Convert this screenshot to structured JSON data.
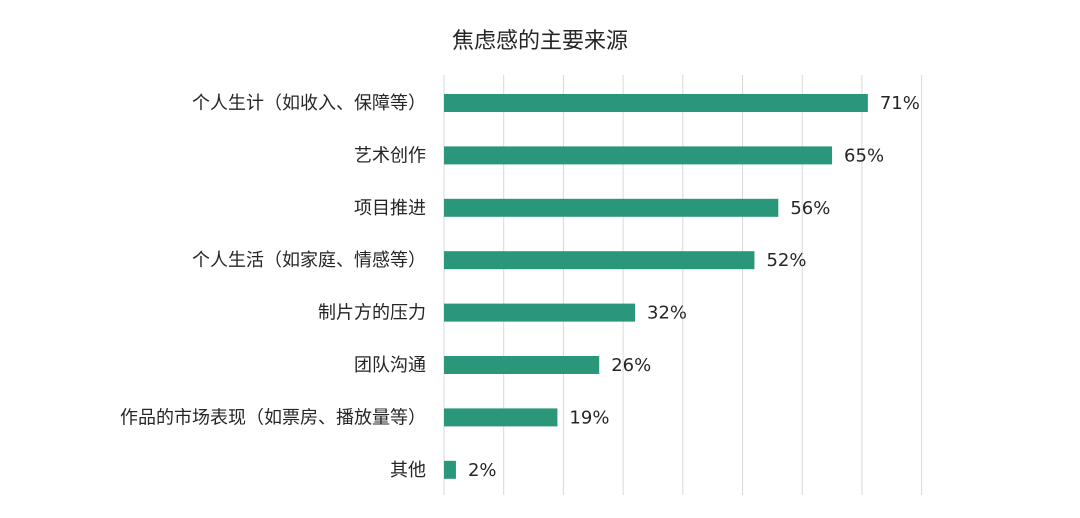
{
  "chart_data": {
    "type": "bar",
    "orientation": "horizontal",
    "title": "焦虑感的主要来源",
    "categories": [
      "个人生计（如收入、保障等）",
      "艺术创作",
      "项目推进",
      "个人生活（如家庭、情感等）",
      "制片方的压力",
      "团队沟通",
      "作品的市场表现（如票房、播放量等）",
      "其他"
    ],
    "values": [
      71,
      65,
      56,
      52,
      32,
      26,
      19,
      2
    ],
    "value_labels": [
      "71%",
      "65%",
      "56%",
      "52%",
      "32%",
      "26%",
      "19%",
      "2%"
    ],
    "unit": "%",
    "xlim": [
      0,
      80
    ],
    "grid": true,
    "legend": "none",
    "bar_color": "#2a967a"
  }
}
